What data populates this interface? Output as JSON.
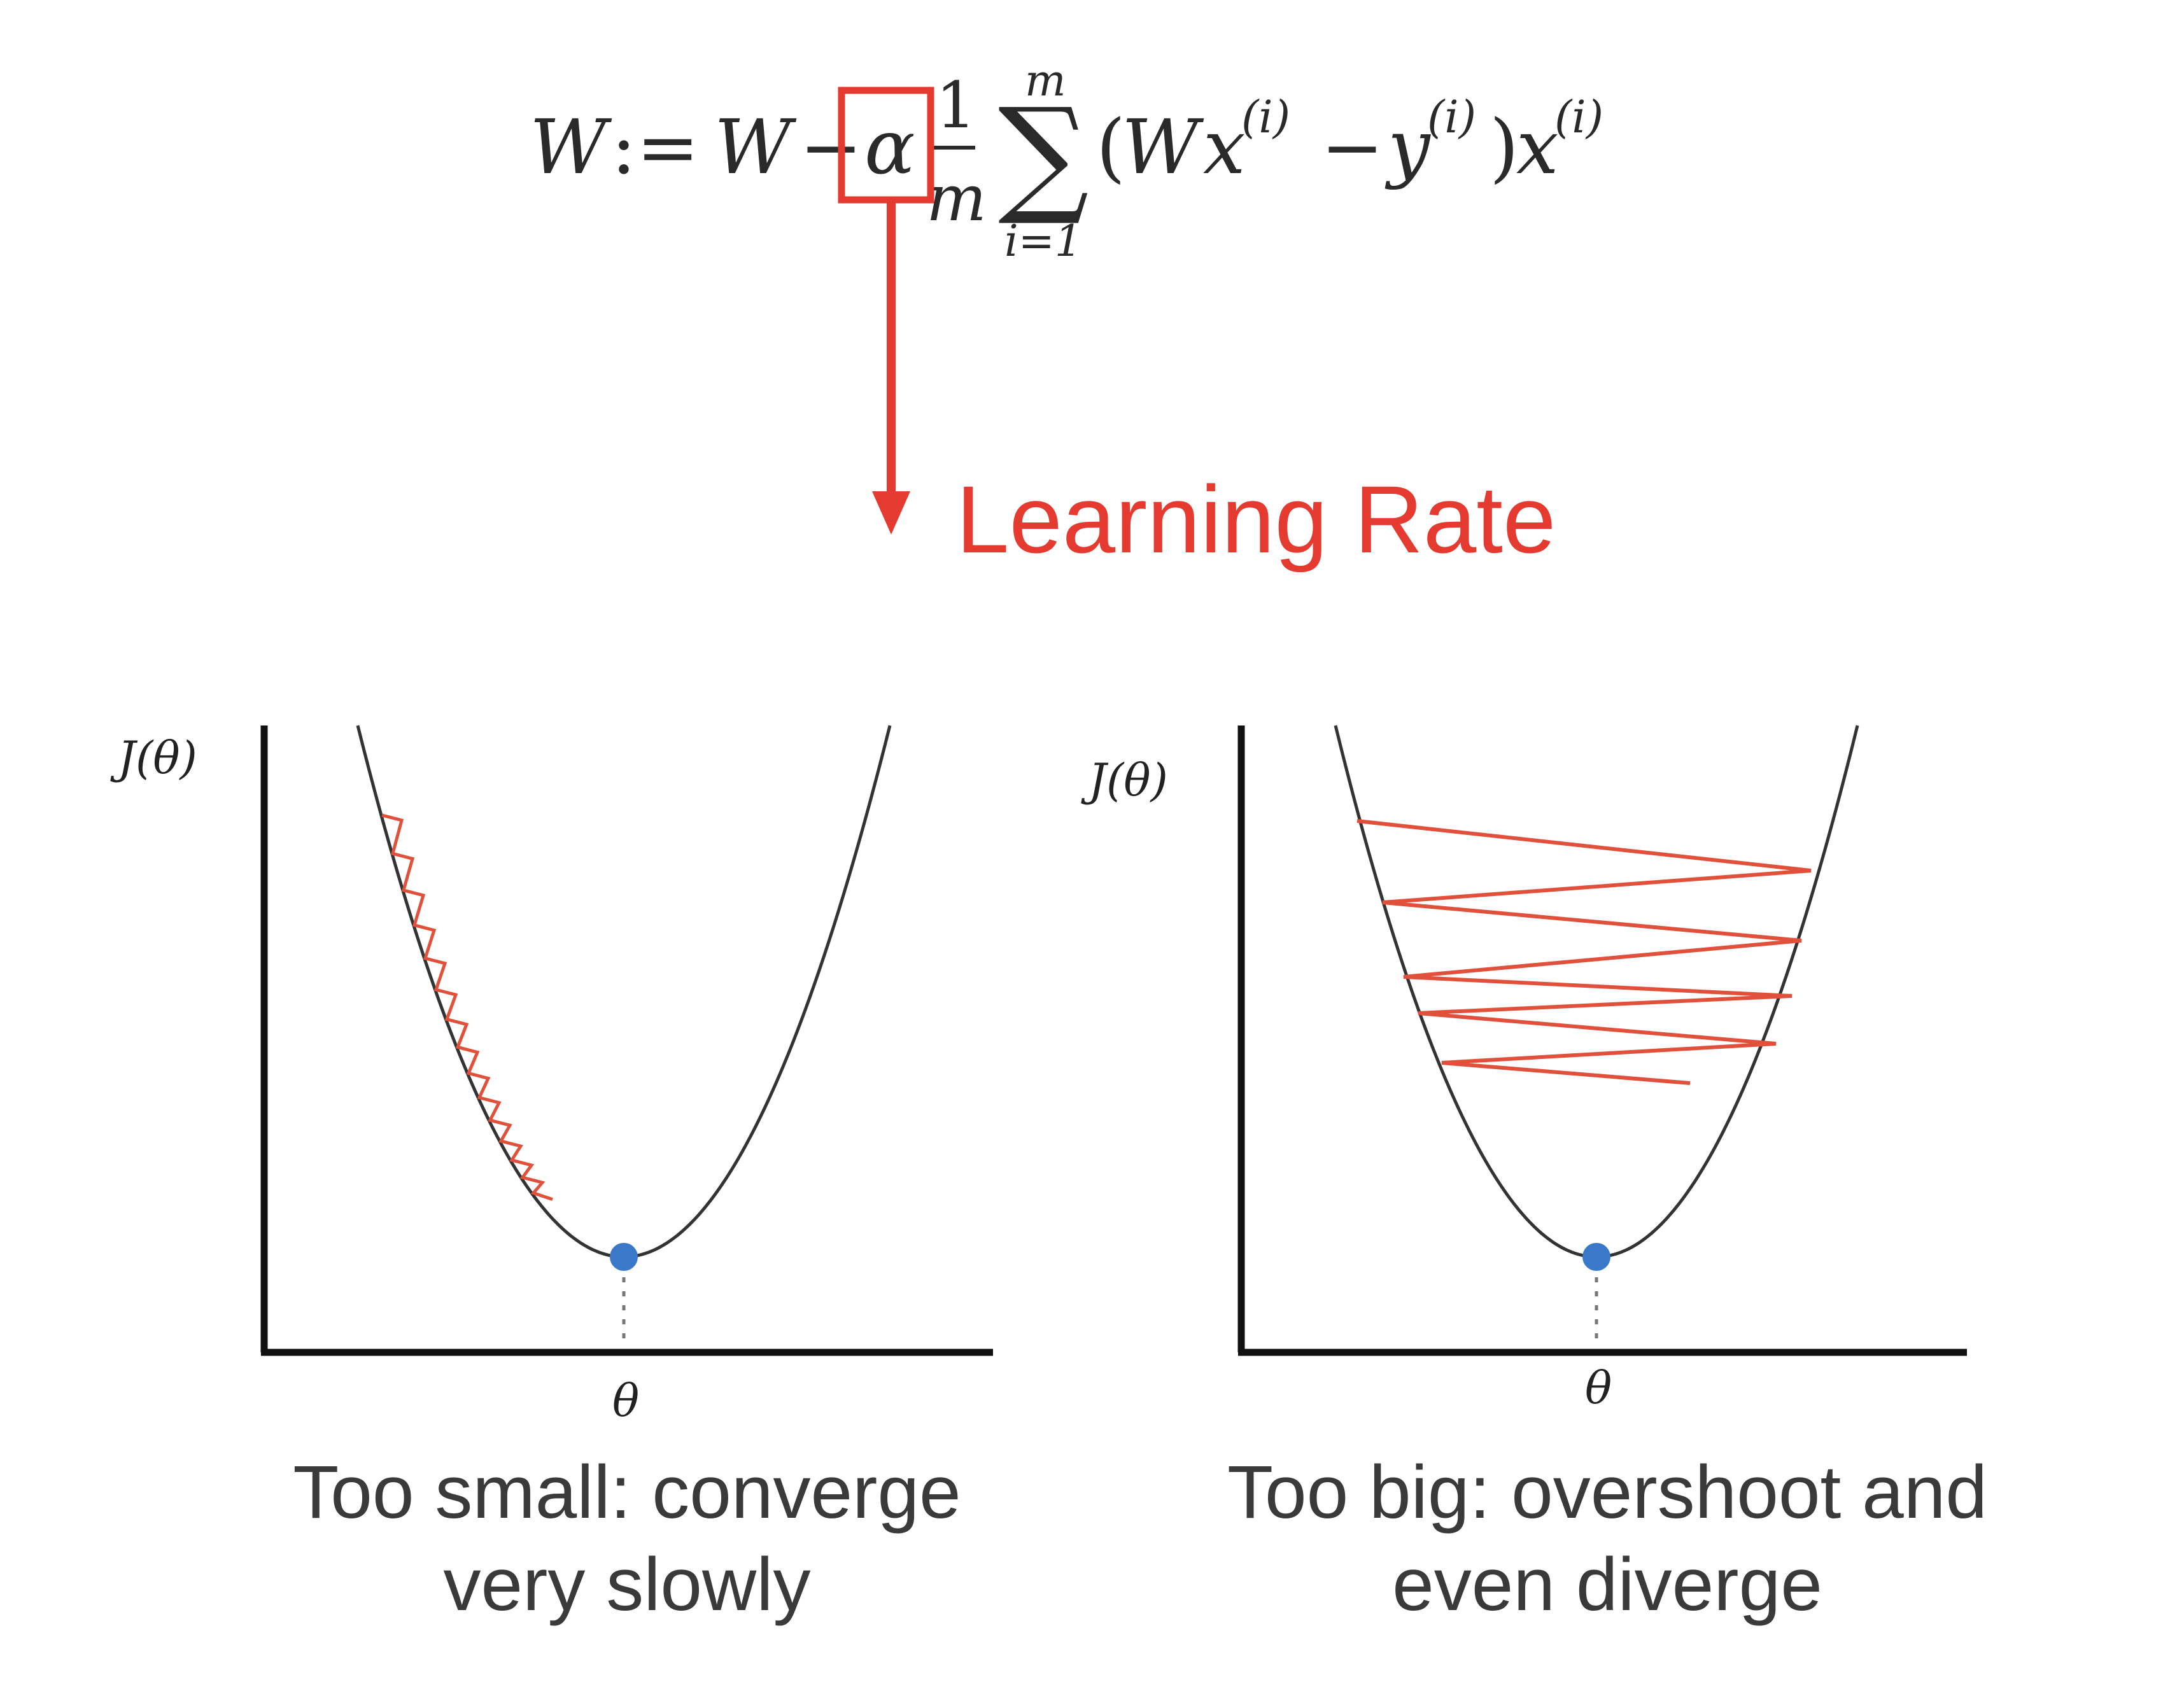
{
  "formula": {
    "lhs": "W",
    "assign": ":=",
    "w2": "W",
    "minus": "−",
    "alpha": "α",
    "frac_num": "1",
    "frac_den": "m",
    "sum_sym": "∑",
    "sum_upper": "m",
    "sum_lower": "i=1",
    "open_paren": "(",
    "wx_w": "W",
    "wx_x": "x",
    "sup_i": "(i)",
    "minus2": "−",
    "y": "y",
    "close_paren": ")",
    "x_last": "x"
  },
  "annotation": {
    "label": "Learning Rate",
    "color": "#e53a2f"
  },
  "panels": [
    {
      "ylabel": "J(θ)",
      "xlabel": "θ",
      "caption_line1": "Too small: converge",
      "caption_line2": "very slowly"
    },
    {
      "ylabel": "J(θ)",
      "xlabel": "θ",
      "caption_line1": "Too big: overshoot and",
      "caption_line2": "even diverge"
    }
  ],
  "colors": {
    "curve": "#333333",
    "axis": "#111111",
    "steps": "#e0503a",
    "minimum": "#3a78c9",
    "text": "#222222"
  }
}
